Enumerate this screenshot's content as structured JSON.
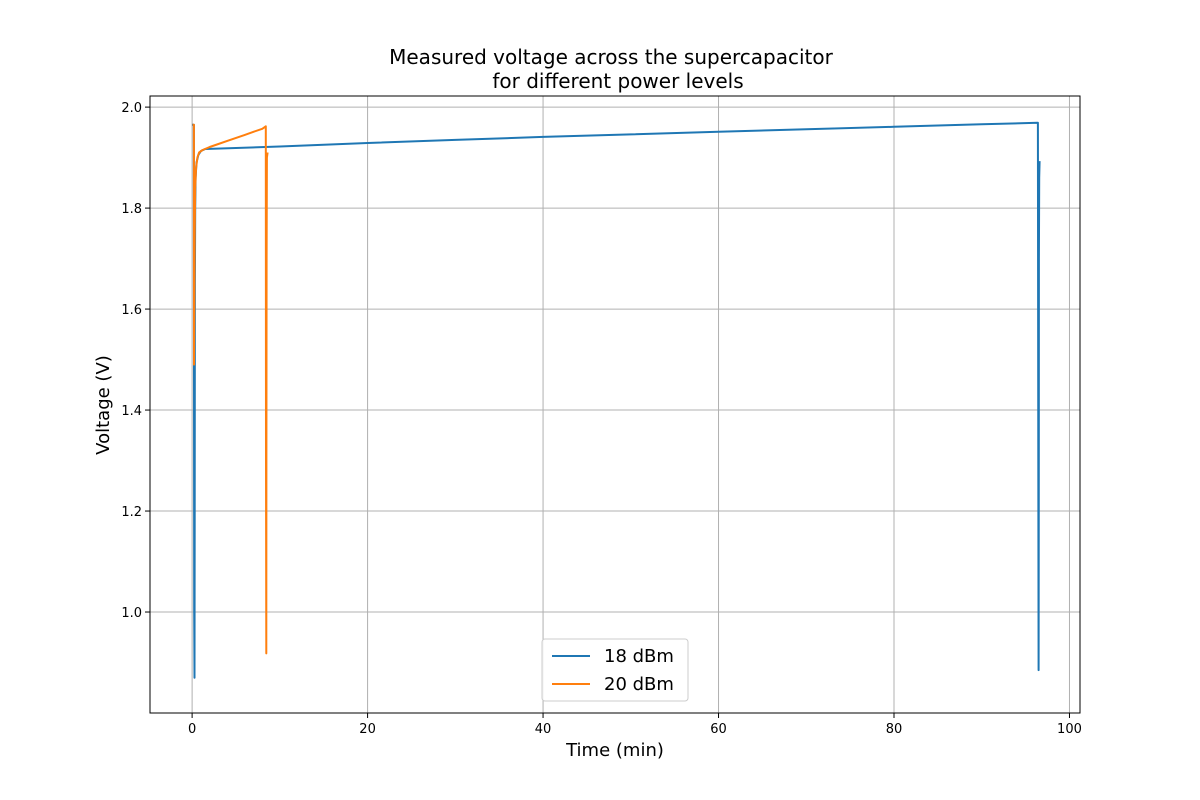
{
  "chart_data": {
    "type": "line",
    "title": [
      "Measured voltage across the supercapacitor",
      "for different power levels"
    ],
    "xlabel": "Time (min)",
    "ylabel": "Voltage (V)",
    "xlim": [
      -4.8,
      101.2
    ],
    "ylim": [
      0.8,
      2.022
    ],
    "x_ticks": [
      0,
      20,
      40,
      60,
      80,
      100
    ],
    "y_ticks": [
      1.0,
      1.2,
      1.4,
      1.6,
      1.8,
      2.0
    ],
    "x_tick_labels": [
      "0",
      "20",
      "40",
      "60",
      "80",
      "100"
    ],
    "y_tick_labels": [
      "1.0",
      "1.2",
      "1.4",
      "1.6",
      "1.8",
      "2.0"
    ],
    "grid": true,
    "legend_position": "lower center",
    "series": [
      {
        "name": "18 dBm",
        "color": "#1f77b4",
        "x": [
          0.0,
          0.2,
          0.22,
          0.24,
          0.27,
          0.3,
          0.32,
          0.35,
          0.4,
          0.5,
          0.7,
          1.0,
          1.5,
          10,
          20,
          30,
          40,
          50,
          60,
          70,
          80,
          90,
          96.4,
          96.45,
          96.48,
          96.5,
          96.52,
          96.55,
          96.6
        ],
        "y": [
          1.965,
          1.965,
          1.49,
          1.0,
          0.87,
          1.2,
          1.65,
          1.8,
          1.86,
          1.89,
          1.905,
          1.913,
          1.917,
          1.922,
          1.929,
          1.935,
          1.941,
          1.946,
          1.951,
          1.956,
          1.961,
          1.966,
          1.969,
          1.3,
          0.885,
          1.3,
          1.7,
          1.86,
          1.893
        ]
      },
      {
        "name": "20 dBm",
        "color": "#ff7f0e",
        "x": [
          0.05,
          0.2,
          0.22,
          0.25,
          0.3,
          0.35,
          0.45,
          0.6,
          0.8,
          1.2,
          2,
          3,
          4,
          5,
          6,
          7,
          8,
          8.4,
          8.42,
          8.45,
          8.47,
          8.49,
          8.52,
          8.6
        ],
        "y": [
          1.965,
          1.965,
          1.49,
          1.6,
          1.75,
          1.84,
          1.88,
          1.9,
          1.91,
          1.915,
          1.921,
          1.927,
          1.933,
          1.939,
          1.945,
          1.951,
          1.957,
          1.962,
          1.3,
          0.918,
          1.3,
          1.7,
          1.9,
          1.91
        ]
      }
    ]
  }
}
